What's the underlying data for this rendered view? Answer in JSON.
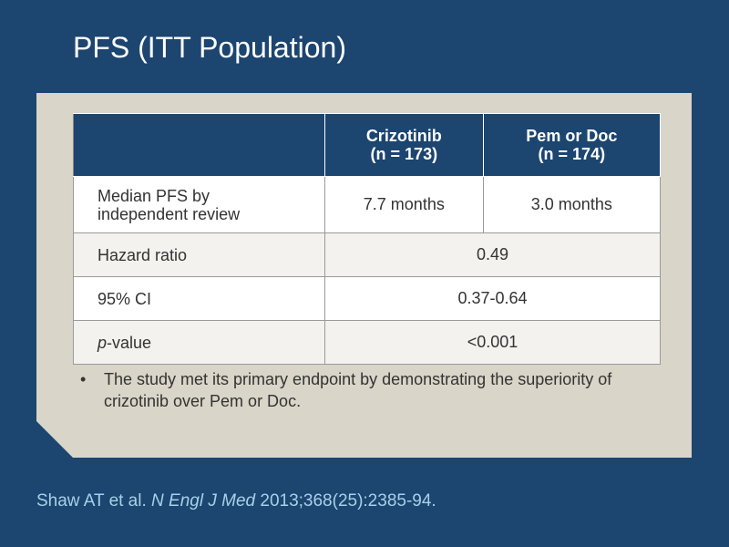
{
  "slide": {
    "title": "PFS (ITT Population)"
  },
  "table": {
    "headers": {
      "col1": "",
      "col2_line1": "Crizotinib",
      "col2_line2": "(n = 173)",
      "col3_line1": "Pem or Doc",
      "col3_line2": "(n = 174)"
    },
    "rows": [
      {
        "label_line1": "Median PFS by",
        "label_line2": "independent review",
        "col2": "7.7 months",
        "col3": "3.0 months"
      },
      {
        "label": "Hazard ratio",
        "value": "0.49"
      },
      {
        "label": "95% CI",
        "value": "0.37-0.64"
      },
      {
        "label_italic": "p",
        "label_rest": "-value",
        "value": "<0.001"
      }
    ]
  },
  "bullet": {
    "symbol": "•",
    "text": "The study met its primary endpoint by demonstrating the superiority of crizotinib over Pem or Doc."
  },
  "citation": {
    "authors": "Shaw AT et al. ",
    "journal": "N Engl J Med",
    "details": " 2013;368(25):2385-94."
  }
}
